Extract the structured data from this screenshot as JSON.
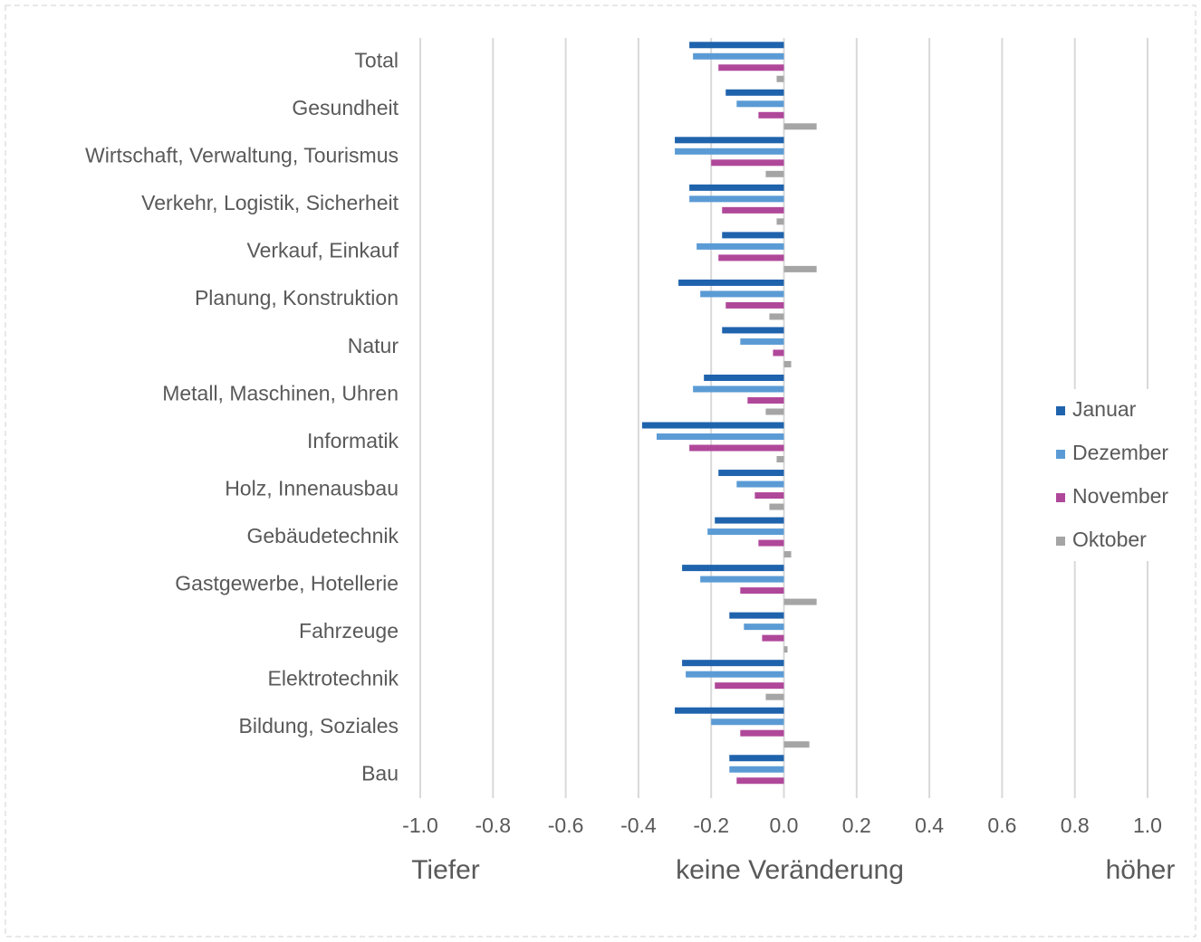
{
  "chart_data": {
    "type": "barh",
    "categories": [
      "Total",
      "Gesundheit",
      "Wirtschaft, Verwaltung, Tourismus",
      "Verkehr, Logistik, Sicherheit",
      "Verkauf, Einkauf",
      "Planung, Konstruktion",
      "Natur",
      "Metall, Maschinen, Uhren",
      "Informatik",
      "Holz, Innenausbau",
      "Gebäudetechnik",
      "Gastgewerbe, Hotellerie",
      "Fahrzeuge",
      "Elektrotechnik",
      "Bildung, Soziales",
      "Bau"
    ],
    "series": [
      {
        "name": "Januar",
        "color": "#1f63ad",
        "values": [
          -0.26,
          -0.16,
          -0.3,
          -0.26,
          -0.17,
          -0.29,
          -0.17,
          -0.22,
          -0.39,
          -0.18,
          -0.19,
          -0.28,
          -0.15,
          -0.28,
          -0.3,
          -0.15
        ]
      },
      {
        "name": "Dezember",
        "color": "#5b9bd5",
        "values": [
          -0.25,
          -0.13,
          -0.3,
          -0.26,
          -0.24,
          -0.23,
          -0.12,
          -0.25,
          -0.35,
          -0.13,
          -0.21,
          -0.23,
          -0.11,
          -0.27,
          -0.2,
          -0.15
        ]
      },
      {
        "name": "November",
        "color": "#b0489a",
        "values": [
          -0.18,
          -0.07,
          -0.2,
          -0.17,
          -0.18,
          -0.16,
          -0.03,
          -0.1,
          -0.26,
          -0.08,
          -0.07,
          -0.12,
          -0.06,
          -0.19,
          -0.12,
          -0.13
        ]
      },
      {
        "name": "Oktober",
        "color": "#a5a5a5",
        "values": [
          -0.02,
          0.09,
          -0.05,
          -0.02,
          0.09,
          -0.04,
          0.02,
          -0.05,
          -0.02,
          -0.04,
          0.02,
          0.09,
          0.01,
          -0.05,
          0.07,
          null
        ]
      }
    ],
    "xlim": [
      -1.0,
      1.0
    ],
    "xticks": [
      {
        "value": -1.0,
        "label": "-1.0"
      },
      -0.8,
      -0.6,
      -0.4,
      -0.2,
      {
        "value": 0,
        "label": "0.0"
      },
      0.2,
      0.4,
      0.6,
      0.8,
      {
        "value": 1.0,
        "label": "1.0"
      }
    ],
    "grid": true,
    "legend": "right",
    "annotations": [
      "Tiefer",
      "keine Veränderung",
      "höher"
    ]
  }
}
